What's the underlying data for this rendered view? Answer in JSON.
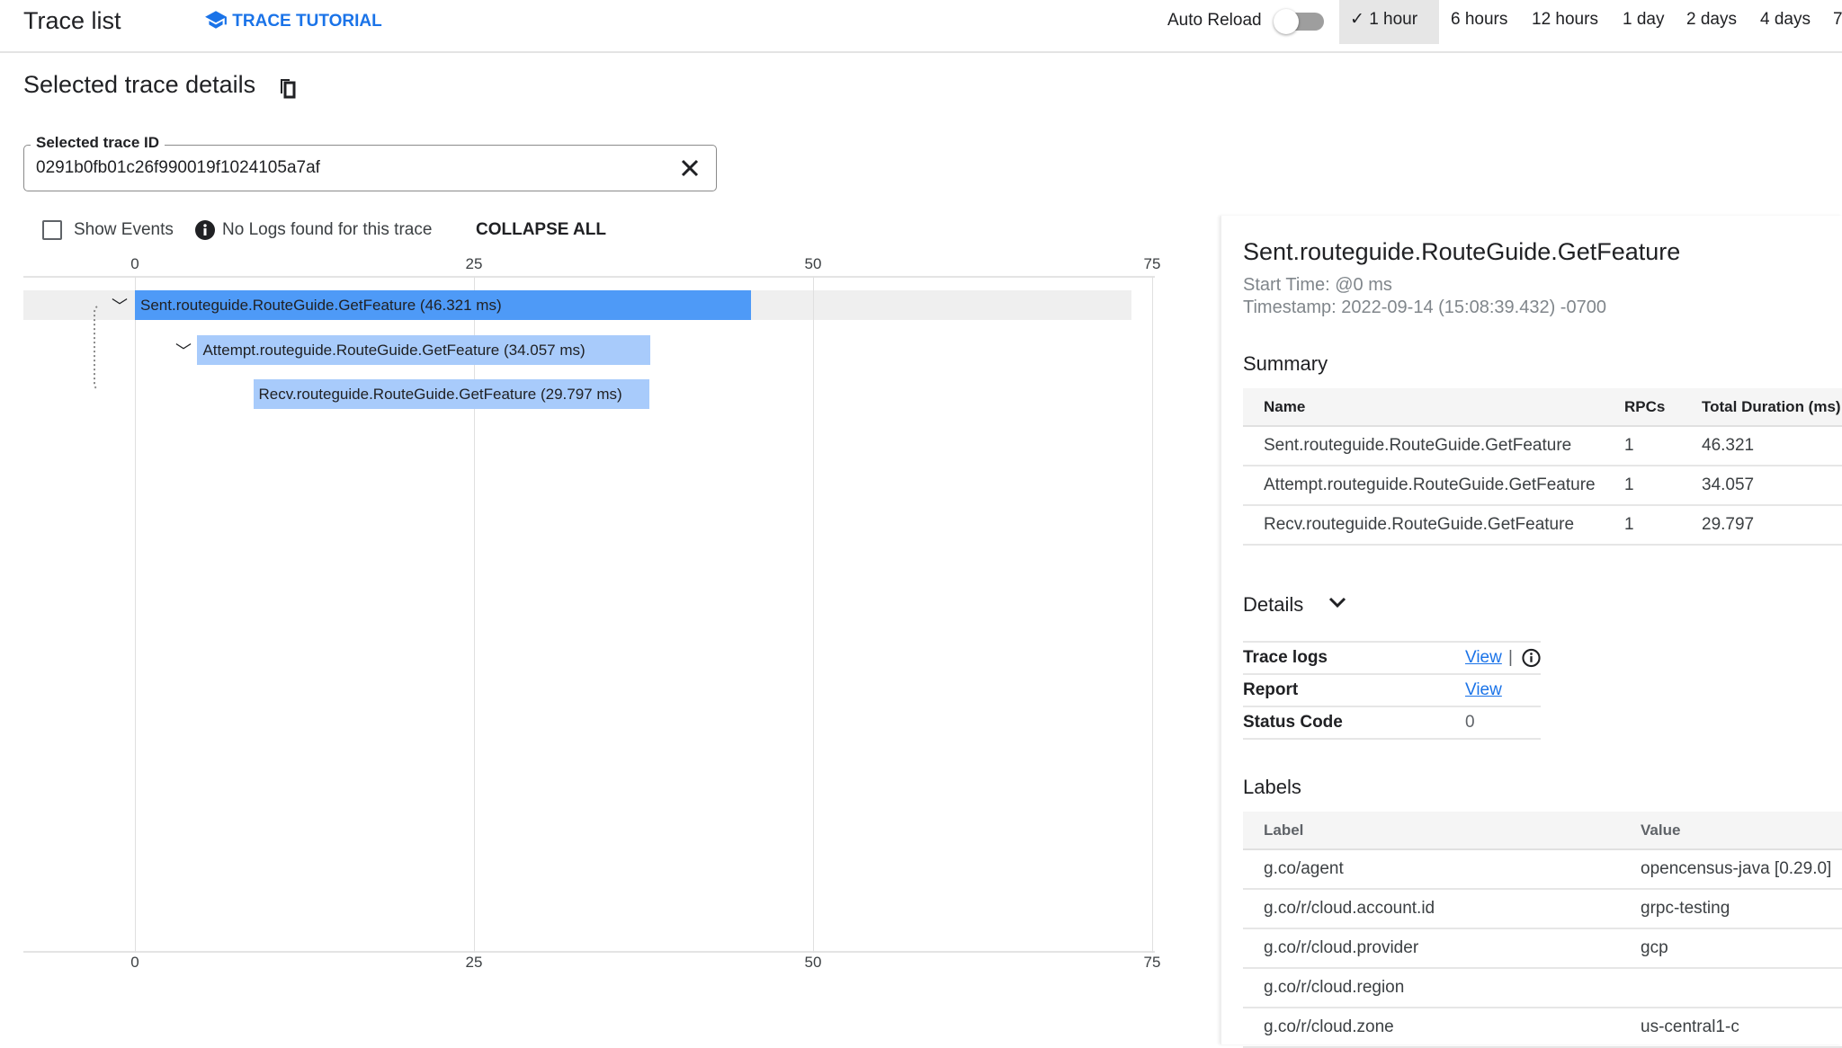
{
  "header": {
    "title": "Trace list",
    "tutorial_label": "TRACE TUTORIAL",
    "auto_reload_label": "Auto Reload",
    "auto_reload_on": false,
    "time_ranges": [
      {
        "label": "1 hour",
        "selected": true
      },
      {
        "label": "6 hours"
      },
      {
        "label": "12 hours"
      },
      {
        "label": "1 day"
      },
      {
        "label": "2 days"
      },
      {
        "label": "4 days"
      },
      {
        "label": "7"
      }
    ]
  },
  "details": {
    "title": "Selected trace details",
    "trace_id_label": "Selected trace ID",
    "trace_id": "0291b0fb01c26f990019f1024105a7af",
    "show_events_label": "Show Events",
    "show_events_checked": false,
    "no_logs_text": "No Logs found for this trace",
    "collapse_all_label": "COLLAPSE ALL"
  },
  "chart_data": {
    "type": "gantt",
    "x_ticks": [
      "0",
      "25",
      "50",
      "75"
    ],
    "xlim": [
      0,
      75
    ],
    "unit": "ms",
    "spans": [
      {
        "label": "Sent.routeguide.RouteGuide.GetFeature (46.321 ms)",
        "start_ms": 0,
        "duration_ms": 46.321,
        "depth": 0,
        "selected": true
      },
      {
        "label": "Attempt.routeguide.RouteGuide.GetFeature (34.057 ms)",
        "start_ms": 4.7,
        "duration_ms": 34.057,
        "depth": 1
      },
      {
        "label": "Recv.routeguide.RouteGuide.GetFeature (29.797 ms)",
        "start_ms": 8.9,
        "duration_ms": 29.797,
        "depth": 2
      }
    ],
    "colors": {
      "selected": "#4e9af7",
      "normal": "#a8cbfb"
    }
  },
  "span_panel": {
    "title": "Sent.routeguide.RouteGuide.GetFeature",
    "start_time": "Start Time: @0 ms",
    "timestamp": "Timestamp: 2022-09-14 (15:08:39.432) -0700",
    "summary_title": "Summary",
    "summary_headers": [
      "Name",
      "RPCs",
      "Total Duration (ms)"
    ],
    "summary_rows": [
      [
        "Sent.routeguide.RouteGuide.GetFeature",
        "1",
        "46.321"
      ],
      [
        "Attempt.routeguide.RouteGuide.GetFeature",
        "1",
        "34.057"
      ],
      [
        "Recv.routeguide.RouteGuide.GetFeature",
        "1",
        "29.797"
      ]
    ],
    "details_title": "Details",
    "details_rows": [
      {
        "key": "Trace logs",
        "value": "View",
        "link": true,
        "sep": "|",
        "info": true
      },
      {
        "key": "Report",
        "value": "View",
        "link": true
      },
      {
        "key": "Status Code",
        "value": "0"
      }
    ],
    "labels_title": "Labels",
    "labels_headers": [
      "Label",
      "Value"
    ],
    "labels_rows": [
      [
        "g.co/agent",
        "opencensus-java [0.29.0]"
      ],
      [
        "g.co/r/cloud.account.id",
        "grpc-testing"
      ],
      [
        "g.co/r/cloud.provider",
        "gcp"
      ],
      [
        "g.co/r/cloud.region",
        ""
      ],
      [
        "g.co/r/cloud.zone",
        "us-central1-c"
      ]
    ]
  }
}
